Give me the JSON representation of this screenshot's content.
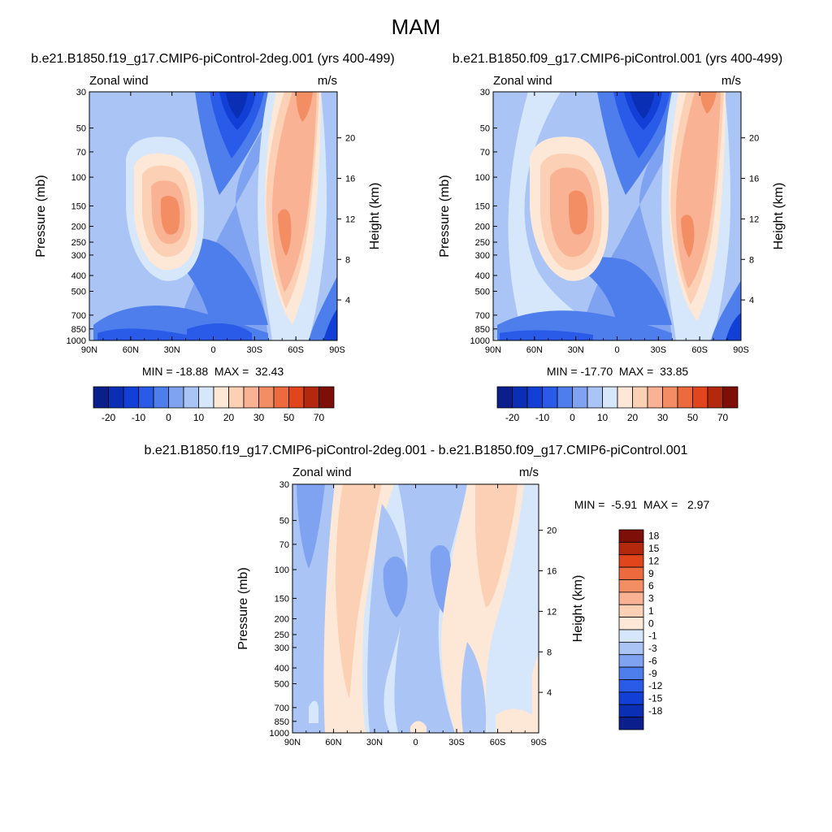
{
  "page": {
    "title": "MAM"
  },
  "palettes": {
    "full": [
      "#0a1f8c",
      "#0a2fb4",
      "#1240d6",
      "#2a5ae8",
      "#4d7eec",
      "#7fa3f0",
      "#a9c4f5",
      "#d6e6fb",
      "#fde8d8",
      "#fcd0b4",
      "#f9b293",
      "#f38d63",
      "#ec6a3e",
      "#e0451b",
      "#b4290e",
      "#7e0e08"
    ],
    "diff": [
      "#0a1f8c",
      "#0a2fb4",
      "#1240d6",
      "#2a5ae8",
      "#4d7eec",
      "#7fa3f0",
      "#a9c4f5",
      "#d6e6fb",
      "#fde8d8",
      "#fcd0b4",
      "#f9b293",
      "#f38d63",
      "#ec6a3e",
      "#e0451b",
      "#b4290e",
      "#7e0e08"
    ]
  },
  "chart_data": [
    {
      "type": "contour",
      "title": "b.e21.B1850.f19_g17.CMIP6-piControl-2deg.001 (yrs 400-499)",
      "left_label": "Zonal wind",
      "right_label": "m/s",
      "ylabel": "Pressure (mb)",
      "y2label": "Height (km)",
      "x_ticks": [
        "90N",
        "60N",
        "30N",
        "0",
        "30S",
        "60S",
        "90S"
      ],
      "y_ticks": [
        "30",
        "50",
        "70",
        "100",
        "150",
        "200",
        "250",
        "300",
        "400",
        "500",
        "700",
        "850",
        "1000"
      ],
      "y2_ticks": [
        "20",
        "16",
        "12",
        "8",
        "4"
      ],
      "min_max": "MIN = -18.88  MAX =  32.43",
      "colorbar_labels": [
        "-20",
        "-10",
        "0",
        "10",
        "20",
        "30",
        "50",
        "70"
      ]
    },
    {
      "type": "contour",
      "title": "b.e21.B1850.f09_g17.CMIP6-piControl.001 (yrs 400-499)",
      "left_label": "Zonal wind",
      "right_label": "m/s",
      "ylabel": "Pressure (mb)",
      "y2label": "Height (km)",
      "x_ticks": [
        "90N",
        "60N",
        "30N",
        "0",
        "30S",
        "60S",
        "90S"
      ],
      "y_ticks": [
        "30",
        "50",
        "70",
        "100",
        "150",
        "200",
        "250",
        "300",
        "400",
        "500",
        "700",
        "850",
        "1000"
      ],
      "y2_ticks": [
        "20",
        "16",
        "12",
        "8",
        "4"
      ],
      "min_max": "MIN = -17.70  MAX =  33.85",
      "colorbar_labels": [
        "-20",
        "-10",
        "0",
        "10",
        "20",
        "30",
        "50",
        "70"
      ]
    },
    {
      "type": "contour",
      "title": "b.e21.B1850.f19_g17.CMIP6-piControl-2deg.001 - b.e21.B1850.f09_g17.CMIP6-piControl.001",
      "left_label": "Zonal wind",
      "right_label": "m/s",
      "ylabel": "Pressure (mb)",
      "y2label": "Height (km)",
      "x_ticks": [
        "90N",
        "60N",
        "30N",
        "0",
        "30S",
        "60S",
        "90S"
      ],
      "y_ticks": [
        "30",
        "50",
        "70",
        "100",
        "150",
        "200",
        "250",
        "300",
        "400",
        "500",
        "700",
        "850",
        "1000"
      ],
      "y2_ticks": [
        "20",
        "16",
        "12",
        "8",
        "4"
      ],
      "min_max": "MIN =  -5.91  MAX =   2.97",
      "colorbar_labels": [
        "18",
        "15",
        "12",
        "9",
        "6",
        "3",
        "1",
        "0",
        "-1",
        "-3",
        "-6",
        "-9",
        "-12",
        "-15",
        "-18"
      ]
    }
  ]
}
